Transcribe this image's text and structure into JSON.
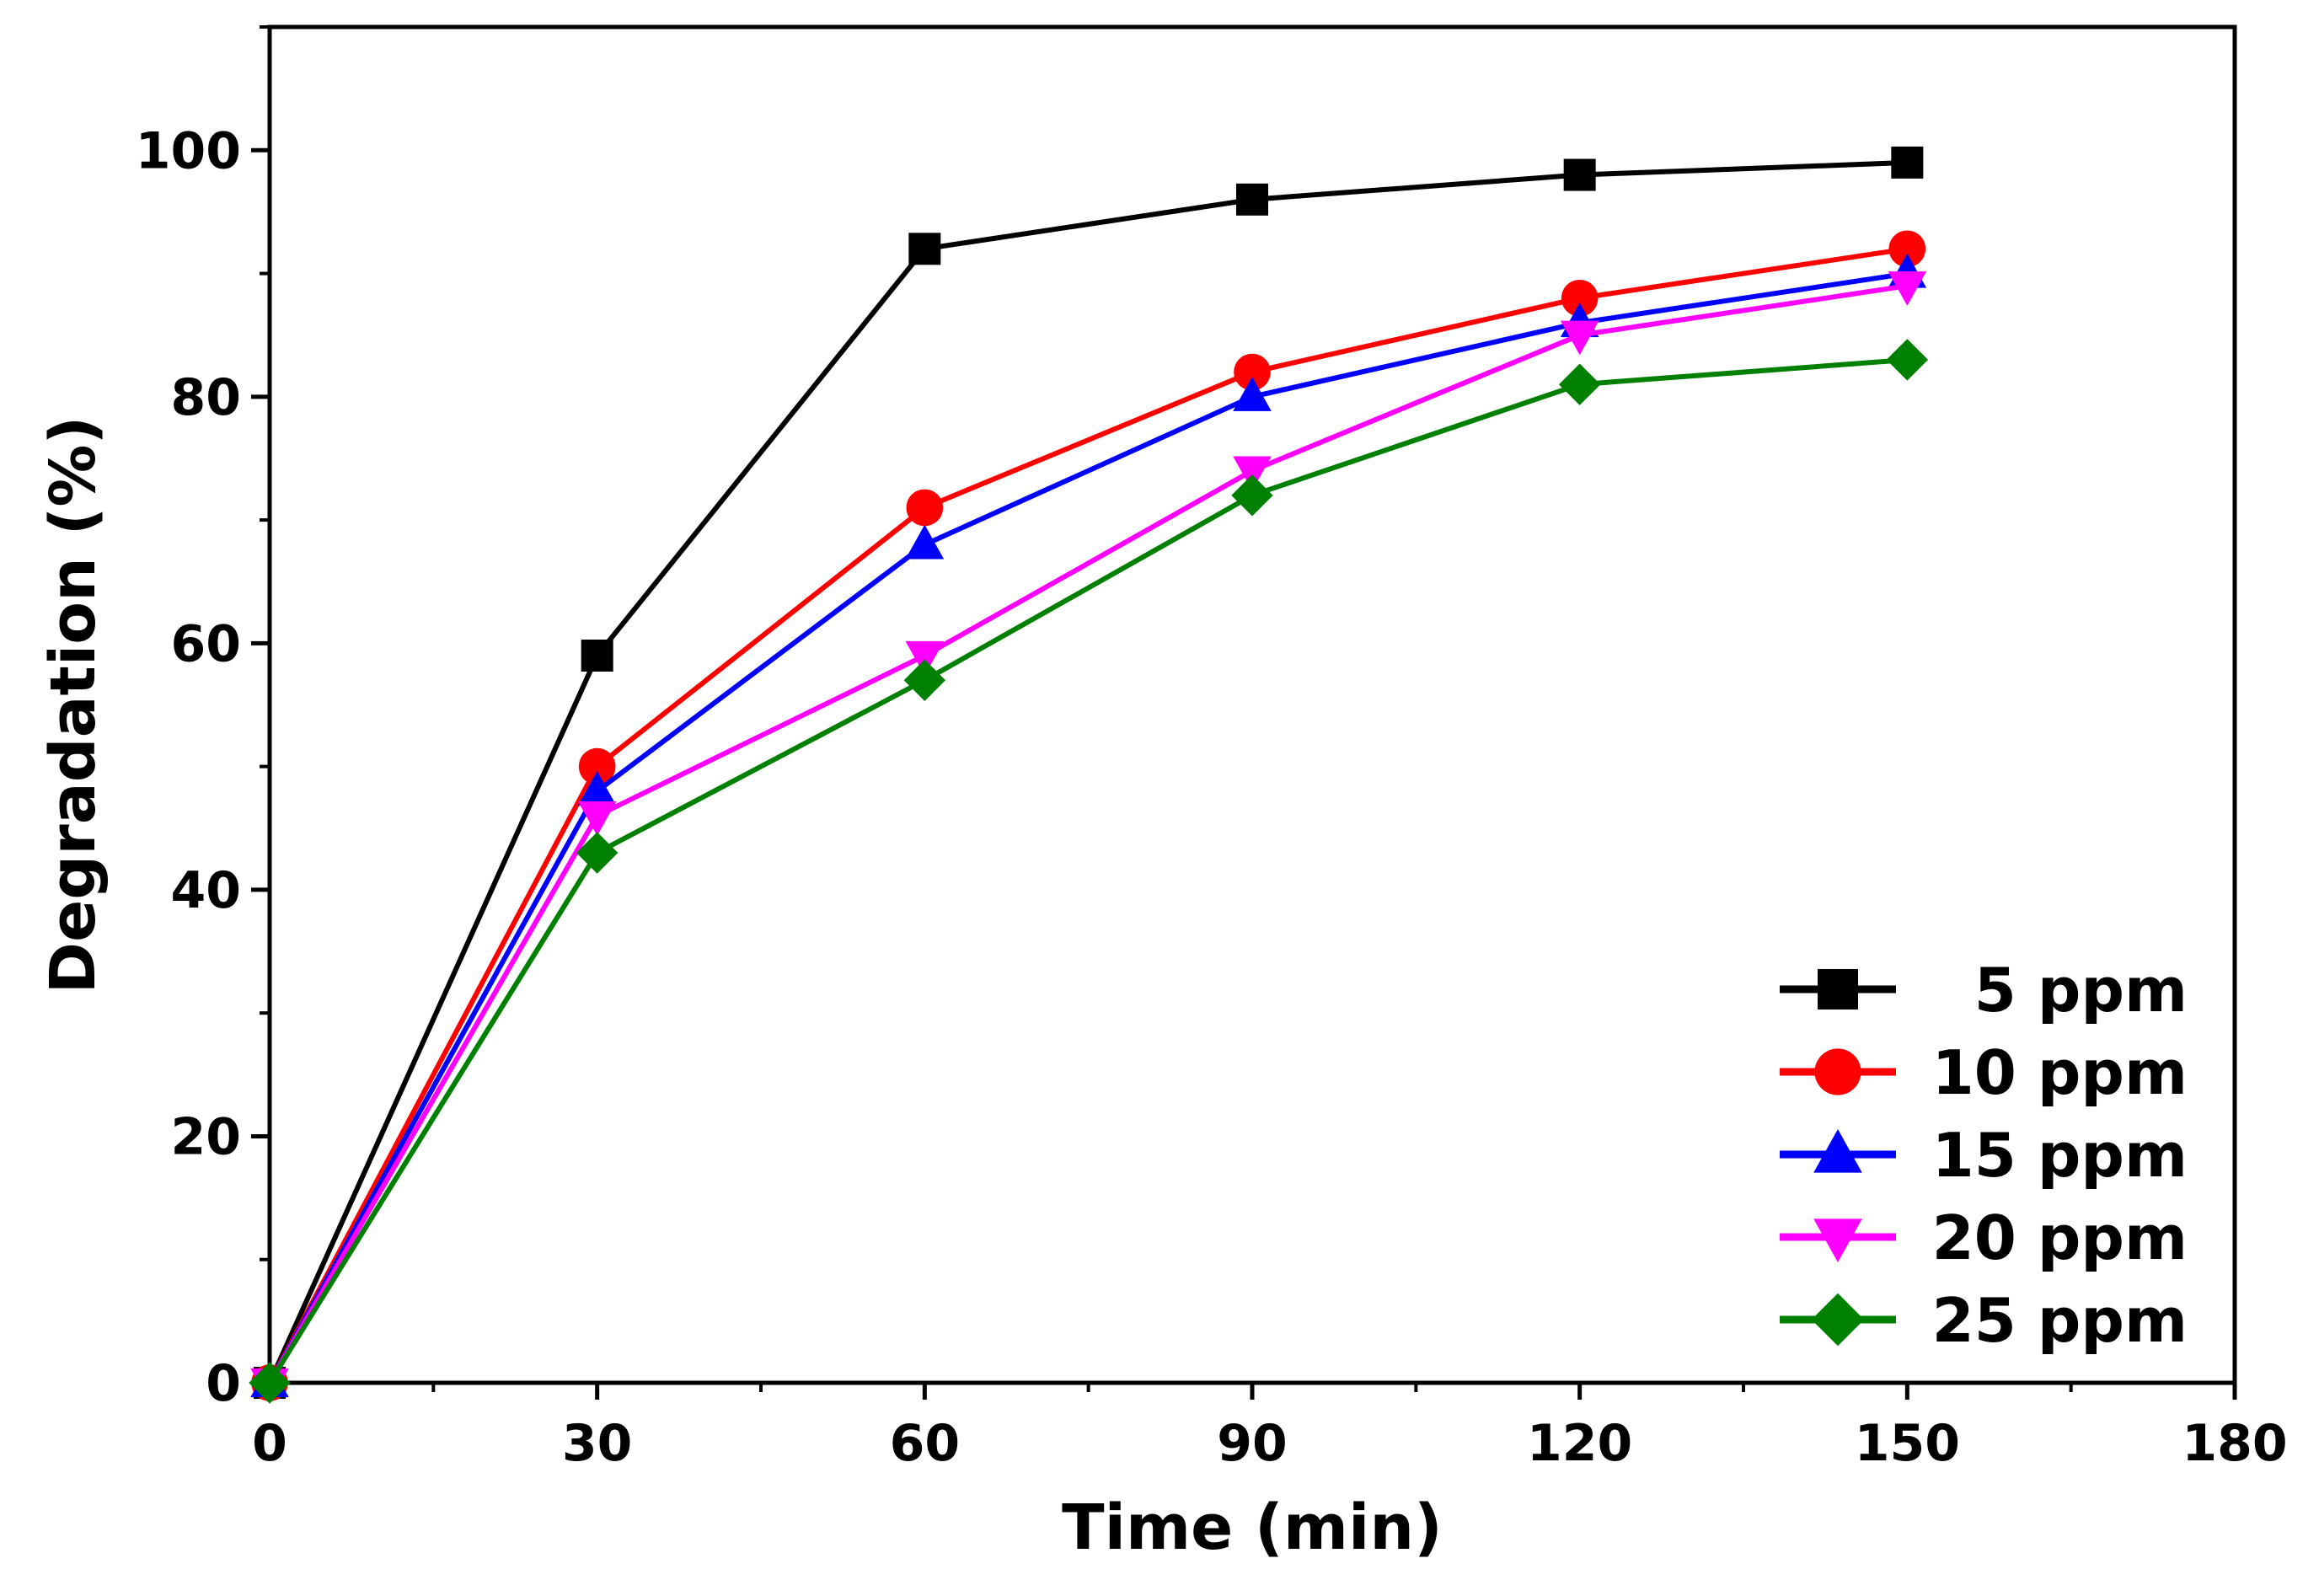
{
  "chart_data": {
    "type": "line",
    "title": "",
    "xlabel": "Time (min)",
    "ylabel": "Degradation (%)",
    "xlim": [
      0,
      180
    ],
    "ylim": [
      0,
      110
    ],
    "xticks": [
      0,
      30,
      60,
      90,
      120,
      150,
      180
    ],
    "yticks": [
      0,
      20,
      40,
      60,
      80,
      100
    ],
    "xtick_labels": [
      "0",
      "30",
      "60",
      "90",
      "120",
      "150",
      "180"
    ],
    "ytick_labels": [
      "0",
      "20",
      "40",
      "60",
      "80",
      "100"
    ],
    "grid": false,
    "legend_position": "bottom-right",
    "x": [
      0,
      30,
      60,
      90,
      120,
      150
    ],
    "series": [
      {
        "name": "5 ppm",
        "values": [
          0,
          59,
          92,
          96,
          98,
          99
        ],
        "color": "#000000",
        "marker": "square"
      },
      {
        "name": "10 ppm",
        "values": [
          0,
          50,
          71,
          82,
          88,
          92
        ],
        "color": "#ff0000",
        "marker": "circle"
      },
      {
        "name": "15 ppm",
        "values": [
          0,
          48,
          68,
          80,
          86,
          90
        ],
        "color": "#0000ff",
        "marker": "triangle-up"
      },
      {
        "name": "20 ppm",
        "values": [
          0,
          46,
          59,
          74,
          85,
          89
        ],
        "color": "#ff00ff",
        "marker": "triangle-down"
      },
      {
        "name": "25 ppm",
        "values": [
          0,
          43,
          57,
          72,
          81,
          83
        ],
        "color": "#008000",
        "marker": "diamond"
      }
    ]
  }
}
